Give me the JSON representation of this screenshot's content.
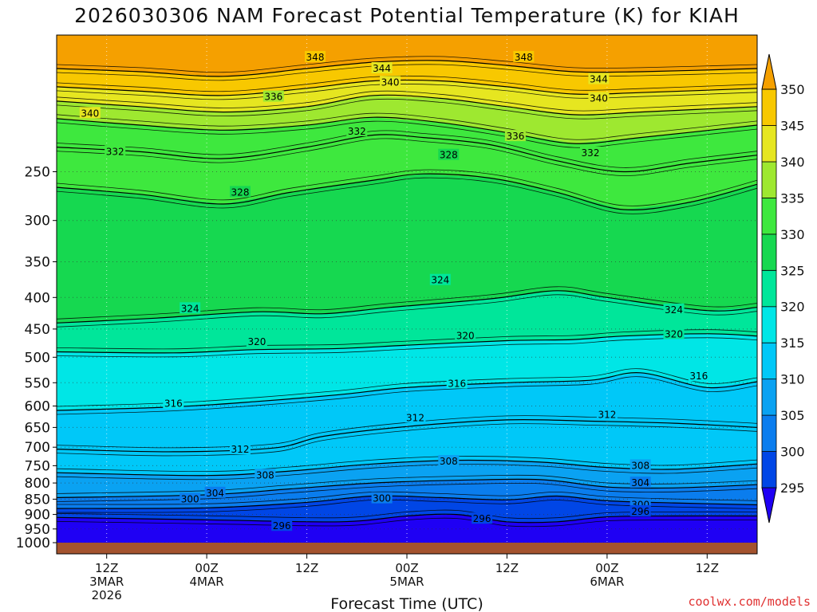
{
  "chart_data": {
    "type": "area",
    "title": "2026030306 NAM Forecast Potential Temperature (K) for KIAH",
    "xlabel": "Forecast Time (UTC)",
    "ylabel": "",
    "y_scale": "log",
    "y_inverted": true,
    "ylim": [
      1000,
      150
    ],
    "y_ticks": [
      250,
      300,
      350,
      400,
      450,
      500,
      550,
      600,
      650,
      700,
      750,
      800,
      850,
      900,
      950,
      1000
    ],
    "x_ticks": [
      {
        "hour": 12,
        "line1": "12Z",
        "line2": "3MAR",
        "line3": "2026"
      },
      {
        "hour": 24,
        "line1": "00Z",
        "line2": "4MAR",
        "line3": ""
      },
      {
        "hour": 36,
        "line1": "12Z",
        "line2": "",
        "line3": ""
      },
      {
        "hour": 48,
        "line1": "00Z",
        "line2": "5MAR",
        "line3": ""
      },
      {
        "hour": 60,
        "line1": "12Z",
        "line2": "",
        "line3": ""
      },
      {
        "hour": 72,
        "line1": "00Z",
        "line2": "6MAR",
        "line3": ""
      },
      {
        "hour": 84,
        "line1": "12Z",
        "line2": "",
        "line3": ""
      }
    ],
    "x_range_hours": [
      6,
      90
    ],
    "grid": "dotted",
    "colorbar": {
      "levels": [
        295,
        300,
        305,
        310,
        315,
        320,
        325,
        330,
        335,
        340,
        345,
        350
      ],
      "colors": [
        "#1f00f4",
        "#0046e6",
        "#0a7dee",
        "#0aa2f2",
        "#00c8f8",
        "#00e6e6",
        "#00e69a",
        "#16d850",
        "#3ee83e",
        "#9ee830",
        "#e6e620",
        "#f8c800",
        "#f5a000"
      ],
      "placement": "right"
    },
    "isentropes": [
      {
        "theta": 296,
        "points": [
          [
            6,
            910
          ],
          [
            24,
            918
          ],
          [
            40,
            925
          ],
          [
            48,
            905
          ],
          [
            54,
            900
          ],
          [
            60,
            925
          ],
          [
            66,
            925
          ],
          [
            72,
            908
          ],
          [
            80,
            905
          ],
          [
            90,
            905
          ]
        ]
      },
      {
        "theta": 300,
        "points": [
          [
            6,
            880
          ],
          [
            24,
            878
          ],
          [
            36,
            860
          ],
          [
            44,
            840
          ],
          [
            52,
            845
          ],
          [
            60,
            852
          ],
          [
            66,
            840
          ],
          [
            72,
            855
          ],
          [
            80,
            862
          ],
          [
            90,
            868
          ]
        ]
      },
      {
        "theta": 304,
        "points": [
          [
            6,
            845
          ],
          [
            24,
            836
          ],
          [
            34,
            818
          ],
          [
            44,
            800
          ],
          [
            54,
            792
          ],
          [
            64,
            790
          ],
          [
            72,
            812
          ],
          [
            80,
            815
          ],
          [
            90,
            805
          ]
        ]
      },
      {
        "theta": 308,
        "points": [
          [
            6,
            770
          ],
          [
            24,
            778
          ],
          [
            34,
            765
          ],
          [
            44,
            745
          ],
          [
            54,
            735
          ],
          [
            64,
            740
          ],
          [
            72,
            755
          ],
          [
            80,
            760
          ],
          [
            90,
            745
          ]
        ]
      },
      {
        "theta": 312,
        "points": [
          [
            6,
            705
          ],
          [
            20,
            712
          ],
          [
            32,
            702
          ],
          [
            38,
            672
          ],
          [
            48,
            648
          ],
          [
            60,
            632
          ],
          [
            70,
            635
          ],
          [
            80,
            640
          ],
          [
            90,
            650
          ]
        ]
      },
      {
        "theta": 316,
        "points": [
          [
            6,
            610
          ],
          [
            20,
            602
          ],
          [
            30,
            590
          ],
          [
            40,
            575
          ],
          [
            48,
            560
          ],
          [
            60,
            550
          ],
          [
            70,
            545
          ],
          [
            76,
            530
          ],
          [
            84,
            560
          ],
          [
            90,
            548
          ]
        ]
      },
      {
        "theta": 320,
        "points": [
          [
            6,
            490
          ],
          [
            20,
            492
          ],
          [
            30,
            486
          ],
          [
            40,
            484
          ],
          [
            48,
            478
          ],
          [
            60,
            470
          ],
          [
            68,
            468
          ],
          [
            74,
            462
          ],
          [
            84,
            458
          ],
          [
            90,
            462
          ]
        ]
      },
      {
        "theta": 324,
        "points": [
          [
            6,
            440
          ],
          [
            18,
            432
          ],
          [
            30,
            422
          ],
          [
            38,
            425
          ],
          [
            46,
            415
          ],
          [
            58,
            402
          ],
          [
            66,
            390
          ],
          [
            72,
            400
          ],
          [
            84,
            420
          ],
          [
            90,
            415
          ]
        ]
      },
      {
        "theta": 328,
        "points": [
          [
            6,
            265
          ],
          [
            16,
            272
          ],
          [
            26,
            282
          ],
          [
            34,
            270
          ],
          [
            44,
            258
          ],
          [
            50,
            252
          ],
          [
            58,
            256
          ],
          [
            66,
            270
          ],
          [
            74,
            288
          ],
          [
            82,
            280
          ],
          [
            90,
            262
          ]
        ]
      },
      {
        "theta": 332,
        "points": [
          [
            6,
            228
          ],
          [
            16,
            232
          ],
          [
            26,
            238
          ],
          [
            36,
            228
          ],
          [
            44,
            218
          ],
          [
            50,
            220
          ],
          [
            58,
            226
          ],
          [
            66,
            240
          ],
          [
            74,
            250
          ],
          [
            82,
            242
          ],
          [
            90,
            235
          ]
        ]
      },
      {
        "theta": 336,
        "points": [
          [
            6,
            205
          ],
          [
            16,
            210
          ],
          [
            26,
            214
          ],
          [
            36,
            210
          ],
          [
            44,
            204
          ],
          [
            52,
            208
          ],
          [
            60,
            216
          ],
          [
            68,
            225
          ],
          [
            76,
            220
          ],
          [
            90,
            210
          ]
        ]
      },
      {
        "theta": 340,
        "points": [
          [
            6,
            192
          ],
          [
            16,
            196
          ],
          [
            26,
            200
          ],
          [
            36,
            196
          ],
          [
            44,
            188
          ],
          [
            52,
            190
          ],
          [
            60,
            196
          ],
          [
            68,
            202
          ],
          [
            76,
            200
          ],
          [
            90,
            196
          ]
        ]
      },
      {
        "theta": 344,
        "points": [
          [
            6,
            182
          ],
          [
            16,
            185
          ],
          [
            26,
            188
          ],
          [
            36,
            183
          ],
          [
            44,
            178
          ],
          [
            52,
            178
          ],
          [
            60,
            182
          ],
          [
            68,
            187
          ],
          [
            76,
            186
          ],
          [
            90,
            183
          ]
        ]
      },
      {
        "theta": 348,
        "points": [
          [
            6,
            170
          ],
          [
            16,
            172
          ],
          [
            26,
            175
          ],
          [
            36,
            170
          ],
          [
            44,
            166
          ],
          [
            52,
            165
          ],
          [
            60,
            168
          ],
          [
            68,
            172
          ],
          [
            76,
            172
          ],
          [
            90,
            170
          ]
        ]
      }
    ],
    "contour_labels": [
      {
        "text": "348",
        "hour": 37,
        "p": 163
      },
      {
        "text": "348",
        "hour": 62,
        "p": 163
      },
      {
        "text": "344",
        "hour": 45,
        "p": 170
      },
      {
        "text": "344",
        "hour": 71,
        "p": 177
      },
      {
        "text": "340",
        "hour": 46,
        "p": 179
      },
      {
        "text": "340",
        "hour": 71,
        "p": 190
      },
      {
        "text": "340",
        "hour": 10,
        "p": 201
      },
      {
        "text": "336",
        "hour": 32,
        "p": 189
      },
      {
        "text": "336",
        "hour": 61,
        "p": 219
      },
      {
        "text": "332",
        "hour": 42,
        "p": 215
      },
      {
        "text": "332",
        "hour": 13,
        "p": 232
      },
      {
        "text": "332",
        "hour": 70,
        "p": 233
      },
      {
        "text": "328",
        "hour": 53,
        "p": 235
      },
      {
        "text": "328",
        "hour": 28,
        "p": 270
      },
      {
        "text": "324",
        "hour": 52,
        "p": 375
      },
      {
        "text": "324",
        "hour": 22,
        "p": 417
      },
      {
        "text": "324",
        "hour": 80,
        "p": 419
      },
      {
        "text": "320",
        "hour": 30,
        "p": 472
      },
      {
        "text": "320",
        "hour": 55,
        "p": 462
      },
      {
        "text": "320",
        "hour": 80,
        "p": 459
      },
      {
        "text": "316",
        "hour": 54,
        "p": 552
      },
      {
        "text": "316",
        "hour": 83,
        "p": 537
      },
      {
        "text": "316",
        "hour": 20,
        "p": 595
      },
      {
        "text": "312",
        "hour": 49,
        "p": 627
      },
      {
        "text": "312",
        "hour": 72,
        "p": 620
      },
      {
        "text": "312",
        "hour": 28,
        "p": 706
      },
      {
        "text": "308",
        "hour": 53,
        "p": 738
      },
      {
        "text": "308",
        "hour": 76,
        "p": 750
      },
      {
        "text": "308",
        "hour": 31,
        "p": 777
      },
      {
        "text": "304",
        "hour": 76,
        "p": 800
      },
      {
        "text": "304",
        "hour": 25,
        "p": 831
      },
      {
        "text": "300",
        "hour": 22,
        "p": 850
      },
      {
        "text": "300",
        "hour": 45,
        "p": 848
      },
      {
        "text": "300",
        "hour": 76,
        "p": 868
      },
      {
        "text": "296",
        "hour": 57,
        "p": 915
      },
      {
        "text": "296",
        "hour": 76,
        "p": 890
      },
      {
        "text": "296",
        "hour": 33,
        "p": 940
      }
    ]
  },
  "credit": "coolwx.com/models"
}
